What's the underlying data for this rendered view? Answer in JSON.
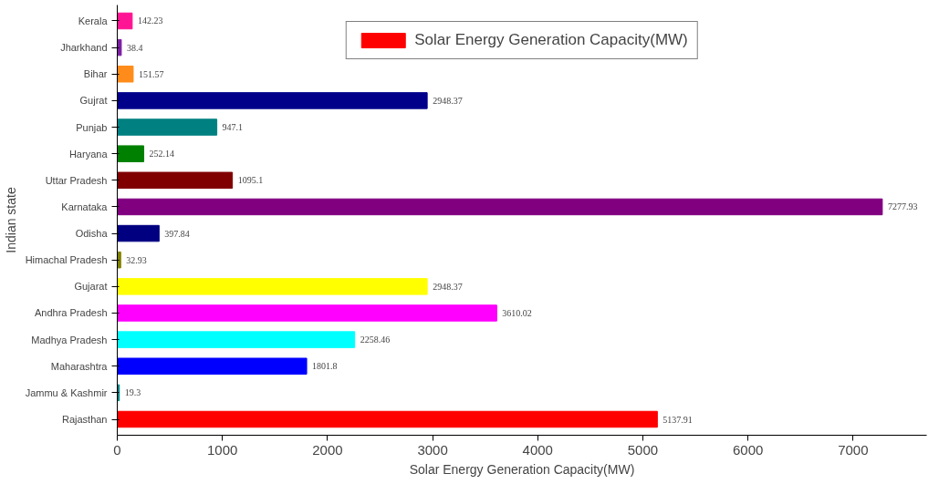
{
  "chart_data": {
    "type": "bar",
    "orientation": "horizontal",
    "xlabel": "Solar Energy Generation Capacity(MW)",
    "ylabel": "Indian state",
    "categories": [
      "Kerala",
      "Jharkhand",
      "Bihar",
      "Gujrat",
      "Punjab",
      "Haryana",
      "Uttar Pradesh",
      "Karnataka",
      "Odisha",
      "Himachal Pradesh",
      "Gujarat",
      "Andhra Pradesh",
      "Madhya Pradesh",
      "Maharashtra",
      "Jammu & Kashmir",
      "Rajasthan"
    ],
    "series": [
      {
        "name": "Solar Energy Generation Capacity(MW)",
        "color": "#ff0000",
        "values": [
          142.23,
          38.4,
          151.57,
          2948.37,
          947.1,
          252.14,
          1095.1,
          7277.93,
          397.84,
          32.93,
          2948.37,
          3610.02,
          2258.46,
          1801.8,
          19.3,
          5137.91
        ],
        "colors": [
          "#ff1493",
          "#7b1fa2",
          "#ff8c1a",
          "#00008b",
          "#008080",
          "#008000",
          "#800000",
          "#800080",
          "#000080",
          "#808000",
          "#ffff00",
          "#ff00ff",
          "#00ffff",
          "#0000ff",
          "#008080",
          "#ff0000"
        ]
      }
    ],
    "data_labels": true,
    "xlim": [
      0,
      7700
    ],
    "xticks": [
      0,
      1000,
      2000,
      3000,
      4000,
      5000,
      6000,
      7000
    ],
    "grid": false,
    "legend": "top right"
  }
}
